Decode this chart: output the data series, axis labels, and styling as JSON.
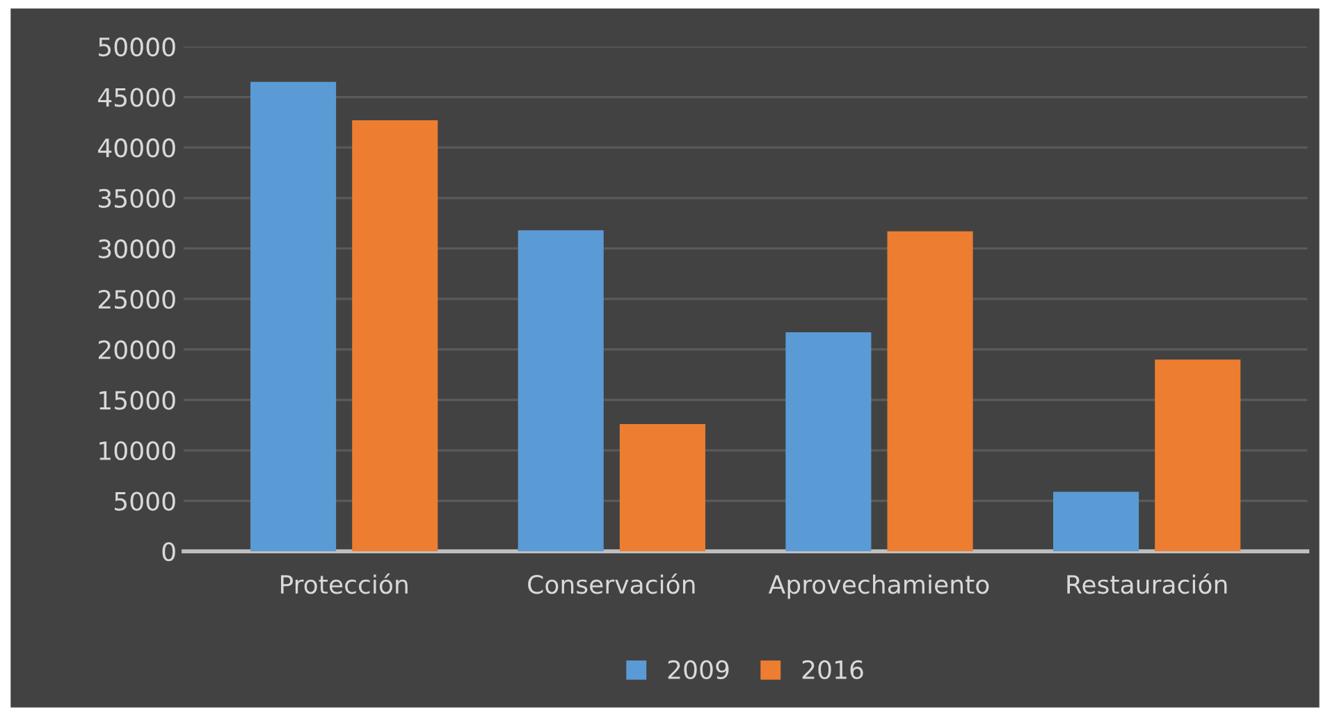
{
  "chart_data": {
    "type": "bar",
    "categories": [
      "Protección",
      "Conservación",
      "Aprovechamiento",
      "Restauración"
    ],
    "series": [
      {
        "name": "2009",
        "color": "#5b9bd5",
        "values": [
          46500,
          31800,
          21700,
          5900
        ]
      },
      {
        "name": "2016",
        "color": "#ed7d31",
        "values": [
          42700,
          12600,
          31700,
          19000
        ]
      }
    ],
    "ylim": [
      0,
      50000
    ],
    "yticks": [
      0,
      5000,
      10000,
      15000,
      20000,
      25000,
      30000,
      35000,
      40000,
      45000,
      50000
    ],
    "grid": "y",
    "legend": "bottom"
  }
}
